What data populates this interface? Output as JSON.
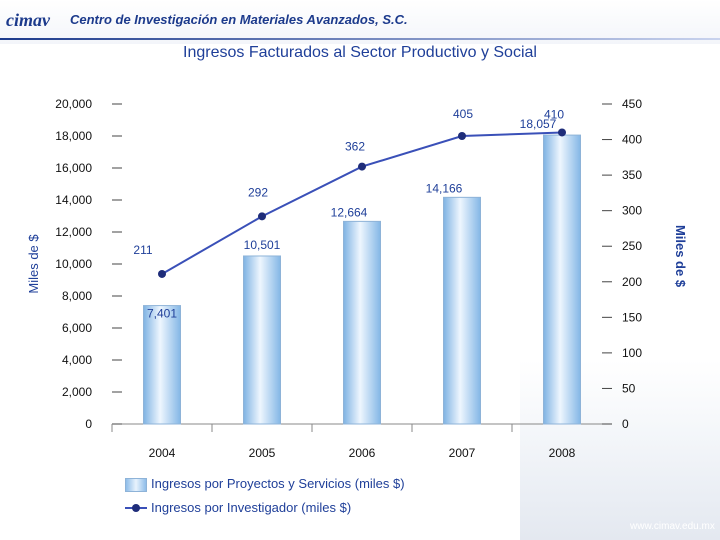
{
  "header": {
    "logo": "cimav",
    "organization": "Centro de Investigación en Materiales Avanzados, S.C."
  },
  "footer": {
    "url": "www.cimav.edu.mx"
  },
  "colors": {
    "bar": "#9cc8ee",
    "line": "#3a50b8",
    "text": "#1f3f99"
  },
  "chart_data": {
    "type": "bar+line",
    "title": "Ingresos Facturados al Sector Productivo y Social",
    "categories": [
      "2004",
      "2005",
      "2006",
      "2007",
      "2008"
    ],
    "left_axis": {
      "label": "Miles de $",
      "range": [
        0,
        20000
      ],
      "ticks": [
        "0",
        "2,000",
        "4,000",
        "6,000",
        "8,000",
        "10,000",
        "12,000",
        "14,000",
        "16,000",
        "18,000",
        "20,000"
      ]
    },
    "right_axis": {
      "label": "Miles de $",
      "range": [
        0,
        450
      ],
      "ticks": [
        "0",
        "50",
        "100",
        "150",
        "200",
        "250",
        "300",
        "350",
        "400",
        "450"
      ]
    },
    "series": [
      {
        "name": "Ingresos por Proyectos y Servicios (miles $)",
        "kind": "bar",
        "axis": "left",
        "values": [
          7401,
          10501,
          12664,
          14166,
          18057
        ],
        "labels": [
          "7,401",
          "10,501",
          "12,664",
          "14,166",
          "18,057"
        ]
      },
      {
        "name": "Ingresos por Investigador (miles $)",
        "kind": "line",
        "axis": "right",
        "values": [
          211,
          292,
          362,
          405,
          410
        ],
        "labels": [
          "211",
          "292",
          "362",
          "405",
          "410"
        ]
      }
    ],
    "legend_placement": "bottom",
    "grid": false
  }
}
